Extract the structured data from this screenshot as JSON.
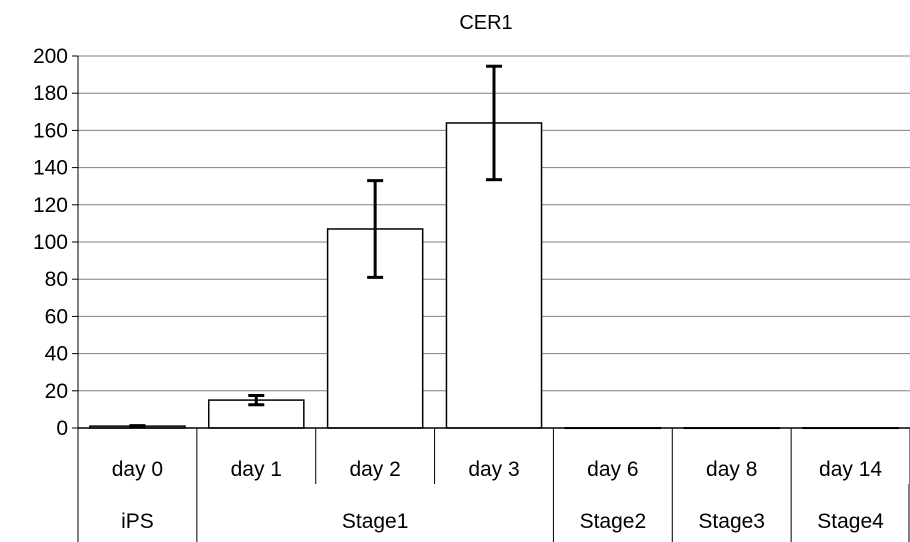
{
  "chart_data": {
    "type": "bar",
    "title": "CER1",
    "xlabel": "",
    "ylabel": "",
    "ylim": [
      0,
      200
    ],
    "yticks": [
      0,
      20,
      40,
      60,
      80,
      100,
      120,
      140,
      160,
      180,
      200
    ],
    "grid": true,
    "categories": [
      "day 0",
      "day 1",
      "day 2",
      "day 3",
      "day 6",
      "day 8",
      "day 14"
    ],
    "groups": [
      {
        "label": "iPS",
        "span": [
          0,
          0
        ]
      },
      {
        "label": "Stage1",
        "span": [
          1,
          3
        ]
      },
      {
        "label": "Stage2",
        "span": [
          4,
          4
        ]
      },
      {
        "label": "Stage3",
        "span": [
          5,
          5
        ]
      },
      {
        "label": "Stage4",
        "span": [
          6,
          6
        ]
      }
    ],
    "values": [
      1,
      15,
      107,
      164,
      0.1,
      0.1,
      0.1
    ],
    "error": [
      0.3,
      2.5,
      26,
      30.5,
      0,
      0,
      0
    ],
    "bar_color": "#ffffff",
    "bar_edge": "#000000"
  }
}
